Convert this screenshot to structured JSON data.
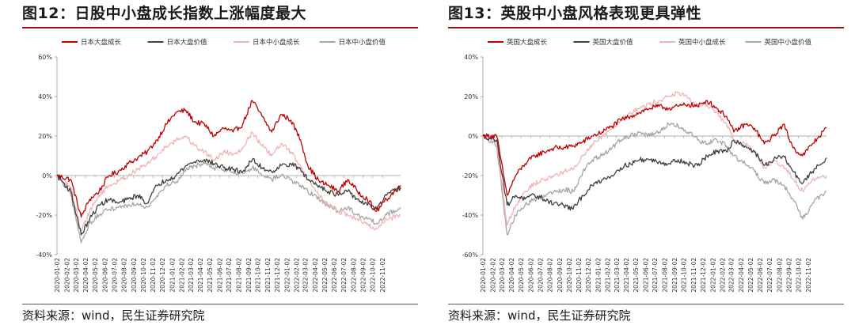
{
  "charts": [
    {
      "title": "图12：日股中小盘成长指数上涨幅度最大",
      "source": "资料来源：wind，民生证券研究院",
      "chart_data": {
        "type": "line",
        "ylim": [
          -40,
          60
        ],
        "yticks": [
          -40,
          -20,
          0,
          20,
          40,
          60
        ],
        "ytick_labels": [
          "-40%",
          "-20%",
          "0%",
          "20%",
          "40%",
          "60%"
        ],
        "xlim": [
          "2020-01-02",
          "2022-12-30"
        ],
        "x_tick_labels": [
          "2020-01-02",
          "2020-02-02",
          "2020-03-02",
          "2020-04-02",
          "2020-05-02",
          "2020-06-02",
          "2020-07-02",
          "2020-08-02",
          "2020-09-02",
          "2020-10-02",
          "2020-11-02",
          "2020-12-02",
          "2021-01-02",
          "2021-02-02",
          "2021-03-02",
          "2021-04-02",
          "2021-05-02",
          "2021-06-02",
          "2021-07-02",
          "2021-08-02",
          "2021-09-02",
          "2021-10-02",
          "2021-11-02",
          "2021-12-02",
          "2022-01-02",
          "2022-02-02",
          "2022-03-02",
          "2022-04-02",
          "2022-05-02",
          "2022-06-02",
          "2022-07-02",
          "2022-08-02",
          "2022-09-02",
          "2022-10-02",
          "2022-11-02"
        ],
        "legend_position": "top",
        "grid": false,
        "series": [
          {
            "name": "日本大盘成长",
            "color": "#c00000",
            "x": [
              "2020-01-02",
              "2020-02-15",
              "2020-03-19",
              "2020-04-15",
              "2020-05-15",
              "2020-06-15",
              "2020-07-15",
              "2020-08-15",
              "2020-09-15",
              "2020-10-15",
              "2020-11-15",
              "2020-12-15",
              "2021-01-15",
              "2021-02-15",
              "2021-03-15",
              "2021-04-15",
              "2021-05-15",
              "2021-06-15",
              "2021-07-15",
              "2021-08-15",
              "2021-09-14",
              "2021-10-15",
              "2021-11-15",
              "2021-12-15",
              "2022-01-15",
              "2022-02-15",
              "2022-03-10",
              "2022-04-15",
              "2022-05-15",
              "2022-06-15",
              "2022-07-15",
              "2022-08-15",
              "2022-09-15",
              "2022-10-15",
              "2022-11-15",
              "2022-12-30"
            ],
            "y": [
              0,
              -2,
              -21,
              -12,
              -8,
              0,
              2,
              6,
              9,
              12,
              18,
              26,
              32,
              33,
              27,
              26,
              20,
              24,
              22,
              26,
              38,
              30,
              22,
              31,
              28,
              18,
              5,
              -3,
              -5,
              -8,
              -2,
              -8,
              -12,
              -18,
              -12,
              -5
            ]
          },
          {
            "name": "日本大盘价值",
            "color": "#404040",
            "x": [
              "2020-01-02",
              "2020-02-15",
              "2020-03-19",
              "2020-04-15",
              "2020-05-15",
              "2020-06-15",
              "2020-07-15",
              "2020-08-15",
              "2020-09-15",
              "2020-10-15",
              "2020-11-15",
              "2020-12-15",
              "2021-01-15",
              "2021-02-15",
              "2021-03-15",
              "2021-04-15",
              "2021-05-15",
              "2021-06-15",
              "2021-07-15",
              "2021-08-15",
              "2021-09-14",
              "2021-10-15",
              "2021-11-15",
              "2021-12-15",
              "2022-01-15",
              "2022-02-15",
              "2022-03-10",
              "2022-04-15",
              "2022-05-15",
              "2022-06-15",
              "2022-07-15",
              "2022-08-15",
              "2022-09-15",
              "2022-10-15",
              "2022-11-15",
              "2022-12-30"
            ],
            "y": [
              0,
              -8,
              -30,
              -22,
              -15,
              -12,
              -14,
              -12,
              -10,
              -14,
              -5,
              -2,
              0,
              5,
              7,
              8,
              6,
              4,
              3,
              2,
              8,
              4,
              2,
              5,
              6,
              3,
              -2,
              -5,
              -8,
              -10,
              -8,
              -12,
              -15,
              -17,
              -10,
              -6
            ]
          },
          {
            "name": "日本中小盘成长",
            "color": "#f0b4b4",
            "x": [
              "2020-01-02",
              "2020-02-15",
              "2020-03-19",
              "2020-04-15",
              "2020-05-15",
              "2020-06-15",
              "2020-07-15",
              "2020-08-15",
              "2020-09-15",
              "2020-10-15",
              "2020-11-15",
              "2020-12-15",
              "2021-01-15",
              "2021-02-15",
              "2021-03-15",
              "2021-04-15",
              "2021-05-15",
              "2021-06-15",
              "2021-07-15",
              "2021-08-15",
              "2021-09-14",
              "2021-10-15",
              "2021-11-15",
              "2021-12-15",
              "2022-01-15",
              "2022-02-15",
              "2022-03-10",
              "2022-04-15",
              "2022-05-15",
              "2022-06-15",
              "2022-07-15",
              "2022-08-15",
              "2022-09-15",
              "2022-10-15",
              "2022-11-15",
              "2022-12-30"
            ],
            "y": [
              0,
              -6,
              -28,
              -18,
              -10,
              -5,
              -3,
              0,
              3,
              6,
              10,
              15,
              18,
              20,
              15,
              12,
              8,
              12,
              11,
              14,
              22,
              15,
              10,
              16,
              12,
              5,
              -2,
              -10,
              -15,
              -18,
              -20,
              -22,
              -25,
              -27,
              -22,
              -20
            ]
          },
          {
            "name": "日本中小盘价值",
            "color": "#a6a6a6",
            "x": [
              "2020-01-02",
              "2020-02-15",
              "2020-03-19",
              "2020-04-15",
              "2020-05-15",
              "2020-06-15",
              "2020-07-15",
              "2020-08-15",
              "2020-09-15",
              "2020-10-15",
              "2020-11-15",
              "2020-12-15",
              "2021-01-15",
              "2021-02-15",
              "2021-03-15",
              "2021-04-15",
              "2021-05-15",
              "2021-06-15",
              "2021-07-15",
              "2021-08-15",
              "2021-09-14",
              "2021-10-15",
              "2021-11-15",
              "2021-12-15",
              "2022-01-15",
              "2022-02-15",
              "2022-03-10",
              "2022-04-15",
              "2022-05-15",
              "2022-06-15",
              "2022-07-15",
              "2022-08-15",
              "2022-09-15",
              "2022-10-15",
              "2022-11-15",
              "2022-12-30"
            ],
            "y": [
              0,
              -10,
              -34,
              -24,
              -20,
              -17,
              -16,
              -15,
              -14,
              -16,
              -10,
              -5,
              -3,
              3,
              5,
              6,
              4,
              3,
              2,
              1,
              4,
              0,
              -2,
              0,
              -2,
              -5,
              -8,
              -12,
              -15,
              -18,
              -16,
              -20,
              -22,
              -24,
              -20,
              -16
            ]
          }
        ]
      }
    },
    {
      "title": "图13：英股中小盘风格表现更具弹性",
      "source": "资料来源：wind，民生证券研究院",
      "chart_data": {
        "type": "line",
        "ylim": [
          -60,
          40
        ],
        "yticks": [
          -60,
          -40,
          -20,
          0,
          20,
          40
        ],
        "ytick_labels": [
          "-60%",
          "-40%",
          "-20%",
          "0%",
          "20%",
          "40%"
        ],
        "xlim": [
          "2020-01-02",
          "2022-12-30"
        ],
        "x_tick_labels": [
          "2020-01-02",
          "2020-02-02",
          "2020-03-02",
          "2020-04-02",
          "2020-05-02",
          "2020-06-02",
          "2020-07-02",
          "2020-08-02",
          "2020-09-02",
          "2020-10-02",
          "2020-11-02",
          "2020-12-02",
          "2021-01-02",
          "2021-02-02",
          "2021-03-02",
          "2021-04-02",
          "2021-05-02",
          "2021-06-02",
          "2021-07-02",
          "2021-08-02",
          "2021-09-02",
          "2021-10-02",
          "2021-11-02",
          "2021-12-02",
          "2022-01-02",
          "2022-02-02",
          "2022-03-02",
          "2022-04-02",
          "2022-05-02",
          "2022-06-02",
          "2022-07-02",
          "2022-08-02",
          "2022-09-02",
          "2022-10-02",
          "2022-11-02"
        ],
        "legend_position": "top",
        "grid": false,
        "series": [
          {
            "name": "英国大盘成长",
            "color": "#c00000",
            "x": [
              "2020-01-02",
              "2020-02-15",
              "2020-03-19",
              "2020-04-15",
              "2020-05-15",
              "2020-06-15",
              "2020-07-15",
              "2020-08-15",
              "2020-09-15",
              "2020-10-15",
              "2020-11-15",
              "2020-12-15",
              "2021-01-15",
              "2021-02-15",
              "2021-03-15",
              "2021-04-15",
              "2021-05-15",
              "2021-06-15",
              "2021-07-15",
              "2021-08-15",
              "2021-09-14",
              "2021-10-15",
              "2021-11-15",
              "2021-12-15",
              "2022-01-15",
              "2022-02-15",
              "2022-03-10",
              "2022-04-15",
              "2022-05-15",
              "2022-06-15",
              "2022-07-15",
              "2022-08-15",
              "2022-09-15",
              "2022-10-15",
              "2022-11-15",
              "2022-12-30"
            ],
            "y": [
              0,
              0,
              -30,
              -20,
              -14,
              -10,
              -8,
              -6,
              -6,
              -5,
              -3,
              0,
              2,
              5,
              8,
              10,
              12,
              14,
              15,
              14,
              15,
              16,
              15,
              18,
              14,
              10,
              2,
              6,
              4,
              -4,
              0,
              6,
              -6,
              -10,
              -4,
              4
            ]
          },
          {
            "name": "英国大盘价值",
            "color": "#404040",
            "x": [
              "2020-01-02",
              "2020-02-15",
              "2020-03-19",
              "2020-04-15",
              "2020-05-15",
              "2020-06-15",
              "2020-07-15",
              "2020-08-15",
              "2020-09-15",
              "2020-10-15",
              "2020-11-15",
              "2020-12-15",
              "2021-01-15",
              "2021-02-15",
              "2021-03-15",
              "2021-04-15",
              "2021-05-15",
              "2021-06-15",
              "2021-07-15",
              "2021-08-15",
              "2021-09-14",
              "2021-10-15",
              "2021-11-15",
              "2021-12-15",
              "2022-01-15",
              "2022-02-15",
              "2022-03-10",
              "2022-04-15",
              "2022-05-15",
              "2022-06-15",
              "2022-07-15",
              "2022-08-15",
              "2022-09-15",
              "2022-10-15",
              "2022-11-15",
              "2022-12-30"
            ],
            "y": [
              0,
              -2,
              -35,
              -30,
              -32,
              -30,
              -32,
              -34,
              -35,
              -37,
              -30,
              -25,
              -22,
              -20,
              -16,
              -14,
              -12,
              -12,
              -13,
              -14,
              -12,
              -14,
              -15,
              -10,
              -8,
              -8,
              -2,
              -5,
              -8,
              -15,
              -12,
              -10,
              -18,
              -24,
              -18,
              -11
            ]
          },
          {
            "name": "英国中小盘成长",
            "color": "#f0b4b4",
            "x": [
              "2020-01-02",
              "2020-02-15",
              "2020-03-19",
              "2020-04-15",
              "2020-05-15",
              "2020-06-15",
              "2020-07-15",
              "2020-08-15",
              "2020-09-15",
              "2020-10-15",
              "2020-11-15",
              "2020-12-15",
              "2021-01-15",
              "2021-02-15",
              "2021-03-15",
              "2021-04-15",
              "2021-05-15",
              "2021-06-15",
              "2021-07-15",
              "2021-08-15",
              "2021-09-14",
              "2021-10-15",
              "2021-11-15",
              "2021-12-15",
              "2022-01-15",
              "2022-02-15",
              "2022-03-10",
              "2022-04-15",
              "2022-05-15",
              "2022-06-15",
              "2022-07-15",
              "2022-08-15",
              "2022-09-15",
              "2022-10-15",
              "2022-11-15",
              "2022-12-30"
            ],
            "y": [
              0,
              -3,
              -45,
              -35,
              -28,
              -24,
              -22,
              -20,
              -18,
              -17,
              -10,
              -4,
              0,
              4,
              8,
              12,
              14,
              16,
              18,
              20,
              22,
              19,
              15,
              16,
              12,
              6,
              -2,
              -4,
              -8,
              -16,
              -12,
              -15,
              -22,
              -28,
              -22,
              -20
            ]
          },
          {
            "name": "英国中小盘价值",
            "color": "#a6a6a6",
            "x": [
              "2020-01-02",
              "2020-02-15",
              "2020-03-19",
              "2020-04-15",
              "2020-05-15",
              "2020-06-15",
              "2020-07-15",
              "2020-08-15",
              "2020-09-15",
              "2020-10-15",
              "2020-11-15",
              "2020-12-15",
              "2021-01-15",
              "2021-02-15",
              "2021-03-15",
              "2021-04-15",
              "2021-05-15",
              "2021-06-15",
              "2021-07-15",
              "2021-08-15",
              "2021-09-14",
              "2021-10-15",
              "2021-11-15",
              "2021-12-15",
              "2022-01-15",
              "2022-02-15",
              "2022-03-10",
              "2022-04-15",
              "2022-05-15",
              "2022-06-15",
              "2022-07-15",
              "2022-08-15",
              "2022-09-15",
              "2022-10-15",
              "2022-11-15",
              "2022-12-30"
            ],
            "y": [
              0,
              -5,
              -50,
              -40,
              -35,
              -32,
              -30,
              -28,
              -27,
              -28,
              -18,
              -12,
              -10,
              -6,
              -2,
              0,
              2,
              0,
              2,
              6,
              5,
              2,
              -2,
              -4,
              -2,
              -5,
              -10,
              -14,
              -18,
              -24,
              -22,
              -25,
              -32,
              -42,
              -34,
              -28
            ]
          }
        ]
      }
    }
  ]
}
